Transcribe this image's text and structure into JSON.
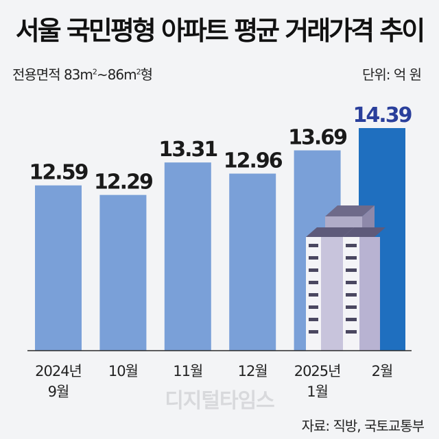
{
  "title": "서울 국민평형 아파트 평균 거래가격 추이",
  "subtitle": {
    "prefix": "전용면적 83m",
    "sup1": "2",
    "middle": "~86m",
    "sup2": "2",
    "suffix": "형"
  },
  "unit_label": "단위: 억 원",
  "watermark": "디지털타임스",
  "source": "자료: 직방, 국토교통부",
  "colors": {
    "bar": "#7aa0d8",
    "highlight_bar": "#1f6fbf",
    "highlight_label": "#2a3f9b",
    "label": "#1a1a1a"
  },
  "chart_data": {
    "type": "bar",
    "categories": [
      [
        "2024년",
        "9월"
      ],
      [
        "10월"
      ],
      [
        "11월"
      ],
      [
        "12월"
      ],
      [
        "2025년",
        "1월"
      ],
      [
        "2월"
      ]
    ],
    "values": [
      12.59,
      12.29,
      13.31,
      12.96,
      13.69,
      14.39
    ],
    "value_labels": [
      "12.59",
      "12.29",
      "13.31",
      "12.96",
      "13.69",
      "14.39"
    ],
    "highlight_index": 5,
    "ylim": [
      7.4,
      14.39
    ],
    "grid": false,
    "axes_visible": false
  }
}
